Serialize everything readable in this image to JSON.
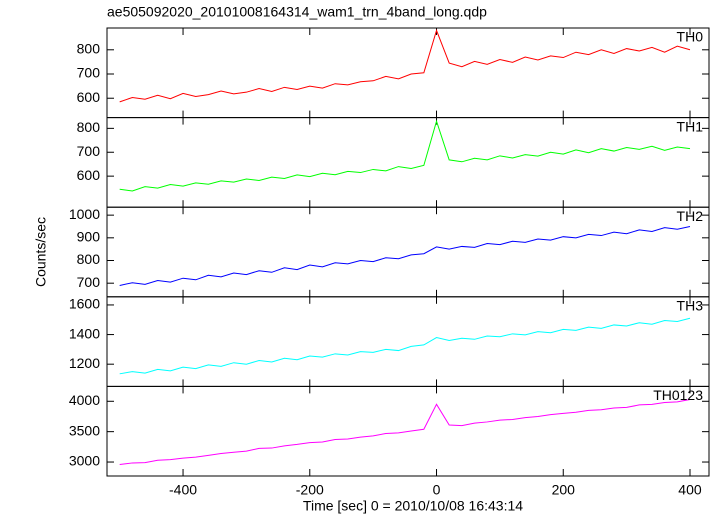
{
  "title": "ae505092020_20101008164314_wam1_trn_4band_long.qdp",
  "x_label": "Time [sec] 0 = 2010/10/08 16:43:14",
  "y_label": "Counts/sec",
  "x": [
    -500,
    -480,
    -460,
    -440,
    -420,
    -400,
    -380,
    -360,
    -340,
    -320,
    -300,
    -280,
    -260,
    -240,
    -220,
    -200,
    -180,
    -160,
    -140,
    -120,
    -100,
    -80,
    -60,
    -40,
    -20,
    0,
    20,
    40,
    60,
    80,
    100,
    120,
    140,
    160,
    180,
    200,
    220,
    240,
    260,
    280,
    300,
    320,
    340,
    360,
    380,
    400
  ],
  "xlim": [
    -520,
    430
  ],
  "xticks": [
    -400,
    -200,
    0,
    200,
    400
  ],
  "chart_data": [
    {
      "type": "line",
      "ylim": [
        520,
        890
      ],
      "yticks": [
        600,
        700,
        800
      ],
      "series": [
        {
          "name": "TH0",
          "color": "#ff0000",
          "values": [
            585,
            603,
            596,
            612,
            598,
            620,
            607,
            615,
            630,
            618,
            625,
            640,
            628,
            645,
            636,
            650,
            642,
            660,
            655,
            668,
            672,
            690,
            680,
            700,
            705,
            880,
            745,
            730,
            752,
            740,
            760,
            748,
            770,
            758,
            775,
            768,
            790,
            780,
            800,
            785,
            805,
            795,
            810,
            790,
            815,
            800
          ]
        }
      ]
    },
    {
      "type": "line",
      "ylim": [
        470,
        845
      ],
      "yticks": [
        600,
        700,
        800
      ],
      "series": [
        {
          "name": "TH1",
          "color": "#00ff00",
          "values": [
            545,
            538,
            556,
            550,
            565,
            558,
            572,
            566,
            580,
            575,
            588,
            582,
            596,
            590,
            605,
            598,
            612,
            606,
            620,
            615,
            628,
            622,
            640,
            632,
            645,
            830,
            668,
            660,
            675,
            668,
            685,
            676,
            690,
            684,
            700,
            692,
            710,
            698,
            715,
            705,
            720,
            712,
            725,
            708,
            722,
            715
          ]
        }
      ]
    },
    {
      "type": "line",
      "ylim": [
        640,
        1035
      ],
      "yticks": [
        700,
        800,
        900,
        1000
      ],
      "series": [
        {
          "name": "TH2",
          "color": "#0000ff",
          "values": [
            690,
            702,
            695,
            712,
            705,
            722,
            715,
            735,
            728,
            745,
            738,
            755,
            748,
            768,
            760,
            780,
            772,
            790,
            785,
            800,
            795,
            812,
            808,
            825,
            830,
            860,
            850,
            862,
            858,
            875,
            870,
            885,
            880,
            895,
            890,
            905,
            900,
            915,
            910,
            925,
            918,
            935,
            928,
            945,
            938,
            950
          ]
        }
      ]
    },
    {
      "type": "line",
      "ylim": [
        1050,
        1655
      ],
      "yticks": [
        1200,
        1400,
        1600
      ],
      "series": [
        {
          "name": "TH3",
          "color": "#00ffff",
          "values": [
            1135,
            1150,
            1140,
            1165,
            1155,
            1180,
            1170,
            1195,
            1185,
            1210,
            1200,
            1225,
            1215,
            1240,
            1230,
            1255,
            1248,
            1270,
            1262,
            1285,
            1280,
            1300,
            1292,
            1320,
            1330,
            1380,
            1360,
            1375,
            1368,
            1390,
            1385,
            1405,
            1398,
            1420,
            1412,
            1435,
            1428,
            1450,
            1442,
            1465,
            1458,
            1480,
            1470,
            1495,
            1488,
            1510
          ]
        }
      ]
    },
    {
      "type": "line",
      "ylim": [
        2770,
        4245
      ],
      "yticks": [
        3000,
        3500,
        4000
      ],
      "series": [
        {
          "name": "TH0123",
          "color": "#ff00ff",
          "values": [
            2960,
            2985,
            2990,
            3030,
            3040,
            3065,
            3080,
            3110,
            3140,
            3160,
            3180,
            3225,
            3230,
            3265,
            3290,
            3320,
            3330,
            3370,
            3380,
            3410,
            3430,
            3470,
            3480,
            3510,
            3540,
            3950,
            3610,
            3600,
            3640,
            3660,
            3690,
            3700,
            3730,
            3750,
            3780,
            3800,
            3820,
            3850,
            3860,
            3890,
            3900,
            3940,
            3950,
            3980,
            3990,
            4030
          ]
        }
      ]
    }
  ]
}
